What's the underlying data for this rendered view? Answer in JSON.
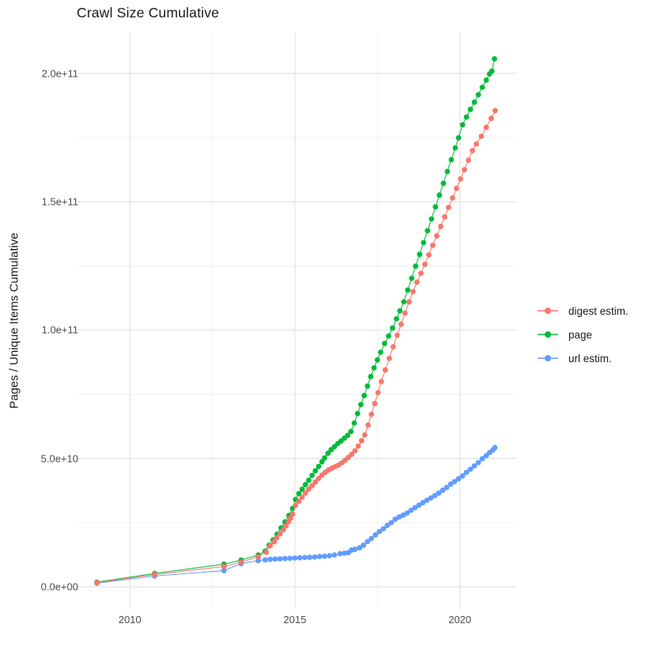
{
  "title": "Crawl Size Cumulative",
  "y_axis": {
    "label": "Pages / Unique Items Cumulative",
    "ticks": [
      {
        "value": 0,
        "label": "0.0e+00"
      },
      {
        "value": 50,
        "label": "5.0e+10"
      },
      {
        "value": 100,
        "label": "1.0e+11"
      },
      {
        "value": 150,
        "label": "1.5e+11"
      },
      {
        "value": 200,
        "label": "2.0e+11"
      }
    ],
    "minor_ticks": [
      25,
      75,
      125,
      175
    ]
  },
  "x_axis": {
    "label": "",
    "ticks": [
      {
        "value": 2010,
        "label": "2010"
      },
      {
        "value": 2015,
        "label": "2015"
      },
      {
        "value": 2020,
        "label": "2020"
      }
    ],
    "minor_ticks": [
      2012.5,
      2017.5
    ]
  },
  "legend": {
    "position": "right",
    "items": [
      {
        "label": "digest estim.",
        "color": "#F8766D"
      },
      {
        "label": "page",
        "color": "#00BA38"
      },
      {
        "label": "url estim.",
        "color": "#619CFF"
      }
    ]
  },
  "colors": {
    "digest_estim": "#F8766D",
    "page": "#00BA38",
    "url_estim": "#619CFF",
    "grid_major": "#e3e3e3",
    "grid_minor": "#efefef",
    "axis_text": "#4d4d4d",
    "title_text": "#1b1b1b",
    "background": "#ffffff"
  },
  "chart_data": {
    "type": "scatter",
    "title": "Crawl Size Cumulative",
    "xlabel": "",
    "ylabel": "Pages / Unique Items Cumulative",
    "x_unit": "year",
    "y_unit": "pages / unique items (cumulative), values below in billions (1e9)",
    "xlim": [
      2008.4,
      2021.8
    ],
    "ylim": [
      0,
      216
    ],
    "grid": true,
    "legend_position": "right",
    "series": [
      {
        "name": "digest estim.",
        "color": "#F8766D",
        "points": [
          [
            2009.0,
            1.6
          ],
          [
            2010.75,
            4.8
          ],
          [
            2012.85,
            7.9
          ],
          [
            2013.37,
            9.6
          ],
          [
            2013.89,
            11.7
          ],
          [
            2014.13,
            13.5
          ],
          [
            2014.25,
            16.0
          ],
          [
            2014.37,
            17.5
          ],
          [
            2014.45,
            19.1
          ],
          [
            2014.55,
            20.6
          ],
          [
            2014.65,
            22.2
          ],
          [
            2014.73,
            23.7
          ],
          [
            2014.81,
            25.3
          ],
          [
            2014.87,
            26.8
          ],
          [
            2014.93,
            28.3
          ],
          [
            2015.02,
            31.7
          ],
          [
            2015.12,
            33.3
          ],
          [
            2015.22,
            34.9
          ],
          [
            2015.32,
            36.5
          ],
          [
            2015.42,
            38.0
          ],
          [
            2015.52,
            39.4
          ],
          [
            2015.62,
            40.8
          ],
          [
            2015.72,
            42.2
          ],
          [
            2015.82,
            43.5
          ],
          [
            2015.92,
            44.6
          ],
          [
            2016.02,
            45.5
          ],
          [
            2016.12,
            46.2
          ],
          [
            2016.22,
            46.8
          ],
          [
            2016.32,
            47.4
          ],
          [
            2016.42,
            48.3
          ],
          [
            2016.52,
            49.3
          ],
          [
            2016.62,
            50.4
          ],
          [
            2016.72,
            51.6
          ],
          [
            2016.82,
            53.0
          ],
          [
            2016.92,
            54.8
          ],
          [
            2017.02,
            56.9
          ],
          [
            2017.12,
            59.2
          ],
          [
            2017.22,
            63.0
          ],
          [
            2017.32,
            67.2
          ],
          [
            2017.42,
            71.4
          ],
          [
            2017.52,
            75.6
          ],
          [
            2017.62,
            80.0
          ],
          [
            2017.74,
            84.5
          ],
          [
            2017.86,
            89.0
          ],
          [
            2017.98,
            93.5
          ],
          [
            2018.1,
            98.0
          ],
          [
            2018.22,
            102.3
          ],
          [
            2018.34,
            106.6
          ],
          [
            2018.46,
            111.0
          ],
          [
            2018.58,
            115.0
          ],
          [
            2018.7,
            118.7
          ],
          [
            2018.82,
            122.1
          ],
          [
            2018.94,
            125.6
          ],
          [
            2019.06,
            129.3
          ],
          [
            2019.18,
            133.0
          ],
          [
            2019.3,
            136.7
          ],
          [
            2019.42,
            140.4
          ],
          [
            2019.54,
            144.1
          ],
          [
            2019.66,
            147.8
          ],
          [
            2019.78,
            151.5
          ],
          [
            2019.9,
            155.2
          ],
          [
            2020.02,
            158.9
          ],
          [
            2020.14,
            162.5
          ],
          [
            2020.26,
            166.2
          ],
          [
            2020.38,
            169.9
          ],
          [
            2020.5,
            172.5
          ],
          [
            2020.65,
            175.5
          ],
          [
            2020.8,
            179.0
          ],
          [
            2020.95,
            182.5
          ],
          [
            2021.07,
            185.5
          ]
        ]
      },
      {
        "name": "page",
        "color": "#00BA38",
        "points": [
          [
            2009.0,
            1.8
          ],
          [
            2010.75,
            5.2
          ],
          [
            2012.85,
            8.8
          ],
          [
            2013.37,
            10.4
          ],
          [
            2013.89,
            12.4
          ],
          [
            2014.1,
            13.9
          ],
          [
            2014.22,
            16.2
          ],
          [
            2014.34,
            18.3
          ],
          [
            2014.46,
            20.5
          ],
          [
            2014.58,
            22.9
          ],
          [
            2014.7,
            25.3
          ],
          [
            2014.82,
            27.8
          ],
          [
            2014.93,
            30.5
          ],
          [
            2015.02,
            34.0
          ],
          [
            2015.12,
            36.3
          ],
          [
            2015.22,
            38.0
          ],
          [
            2015.32,
            39.8
          ],
          [
            2015.42,
            41.5
          ],
          [
            2015.52,
            43.4
          ],
          [
            2015.62,
            45.2
          ],
          [
            2015.72,
            46.9
          ],
          [
            2015.82,
            48.7
          ],
          [
            2015.9,
            50.2
          ],
          [
            2016.0,
            52.0
          ],
          [
            2016.1,
            53.4
          ],
          [
            2016.2,
            54.6
          ],
          [
            2016.3,
            55.8
          ],
          [
            2016.4,
            56.8
          ],
          [
            2016.5,
            57.9
          ],
          [
            2016.6,
            59.0
          ],
          [
            2016.7,
            60.5
          ],
          [
            2016.8,
            63.8
          ],
          [
            2016.9,
            67.5
          ],
          [
            2017.0,
            71.0
          ],
          [
            2017.1,
            74.5
          ],
          [
            2017.2,
            78.2
          ],
          [
            2017.3,
            81.9
          ],
          [
            2017.4,
            85.3
          ],
          [
            2017.5,
            88.4
          ],
          [
            2017.6,
            91.4
          ],
          [
            2017.72,
            94.8
          ],
          [
            2017.84,
            97.7
          ],
          [
            2017.96,
            100.8
          ],
          [
            2018.08,
            104.4
          ],
          [
            2018.18,
            107.5
          ],
          [
            2018.3,
            111.0
          ],
          [
            2018.42,
            115.6
          ],
          [
            2018.54,
            120.2
          ],
          [
            2018.66,
            124.9
          ],
          [
            2018.78,
            129.5
          ],
          [
            2018.9,
            134.1
          ],
          [
            2019.02,
            138.7
          ],
          [
            2019.14,
            143.3
          ],
          [
            2019.26,
            148.0
          ],
          [
            2019.38,
            152.6
          ],
          [
            2019.5,
            157.2
          ],
          [
            2019.62,
            161.8
          ],
          [
            2019.74,
            166.4
          ],
          [
            2019.86,
            171.0
          ],
          [
            2019.96,
            174.9
          ],
          [
            2020.08,
            180.0
          ],
          [
            2020.2,
            183.0
          ],
          [
            2020.32,
            186.0
          ],
          [
            2020.44,
            188.8
          ],
          [
            2020.56,
            191.7
          ],
          [
            2020.68,
            194.6
          ],
          [
            2020.8,
            197.4
          ],
          [
            2020.9,
            199.8
          ],
          [
            2020.97,
            200.9
          ],
          [
            2021.05,
            205.7
          ]
        ]
      },
      {
        "name": "url estim.",
        "color": "#619CFF",
        "points": [
          [
            2009.0,
            1.4
          ],
          [
            2010.75,
            4.2
          ],
          [
            2012.85,
            6.3
          ],
          [
            2013.37,
            9.0
          ],
          [
            2013.89,
            10.2
          ],
          [
            2014.1,
            10.5
          ],
          [
            2014.25,
            10.7
          ],
          [
            2014.4,
            10.8
          ],
          [
            2014.55,
            10.9
          ],
          [
            2014.7,
            11.0
          ],
          [
            2014.85,
            11.1
          ],
          [
            2015.0,
            11.2
          ],
          [
            2015.15,
            11.3
          ],
          [
            2015.3,
            11.4
          ],
          [
            2015.45,
            11.5
          ],
          [
            2015.6,
            11.6
          ],
          [
            2015.75,
            11.8
          ],
          [
            2015.9,
            11.9
          ],
          [
            2016.05,
            12.1
          ],
          [
            2016.2,
            12.4
          ],
          [
            2016.37,
            12.9
          ],
          [
            2016.5,
            13.1
          ],
          [
            2016.62,
            13.3
          ],
          [
            2016.72,
            14.3
          ],
          [
            2016.82,
            14.6
          ],
          [
            2016.96,
            15.2
          ],
          [
            2017.08,
            16.2
          ],
          [
            2017.2,
            17.6
          ],
          [
            2017.32,
            18.8
          ],
          [
            2017.44,
            20.2
          ],
          [
            2017.56,
            21.5
          ],
          [
            2017.68,
            22.6
          ],
          [
            2017.8,
            23.9
          ],
          [
            2017.92,
            25.0
          ],
          [
            2018.04,
            26.3
          ],
          [
            2018.16,
            27.2
          ],
          [
            2018.28,
            27.9
          ],
          [
            2018.4,
            28.7
          ],
          [
            2018.52,
            29.8
          ],
          [
            2018.64,
            30.8
          ],
          [
            2018.76,
            31.8
          ],
          [
            2018.88,
            32.8
          ],
          [
            2019.0,
            33.7
          ],
          [
            2019.12,
            34.6
          ],
          [
            2019.24,
            35.5
          ],
          [
            2019.36,
            36.5
          ],
          [
            2019.48,
            37.6
          ],
          [
            2019.6,
            38.7
          ],
          [
            2019.72,
            40.0
          ],
          [
            2019.84,
            41.0
          ],
          [
            2019.96,
            42.1
          ],
          [
            2020.08,
            43.2
          ],
          [
            2020.2,
            44.6
          ],
          [
            2020.32,
            45.8
          ],
          [
            2020.44,
            47.1
          ],
          [
            2020.56,
            48.4
          ],
          [
            2020.68,
            49.9
          ],
          [
            2020.8,
            51.1
          ],
          [
            2020.9,
            52.3
          ],
          [
            2021.0,
            53.3
          ],
          [
            2021.06,
            54.2
          ]
        ]
      }
    ]
  }
}
